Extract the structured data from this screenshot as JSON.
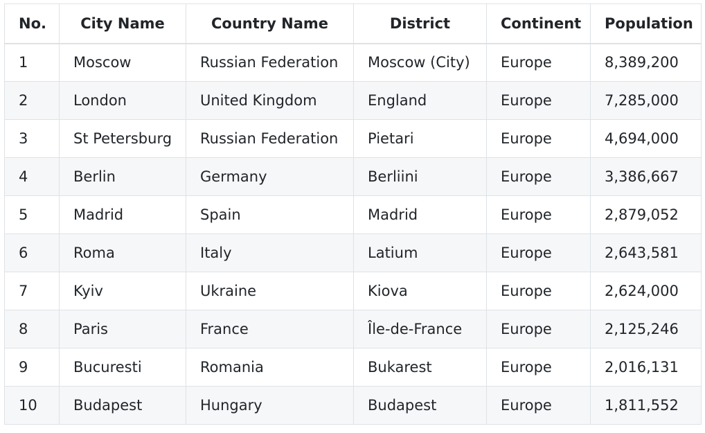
{
  "table": {
    "headers": [
      "No.",
      "City Name",
      "Country Name",
      "District",
      "Continent",
      "Population"
    ],
    "rows": [
      [
        "1",
        "Moscow",
        "Russian Federation",
        "Moscow (City)",
        "Europe",
        "8,389,200"
      ],
      [
        "2",
        "London",
        "United Kingdom",
        "England",
        "Europe",
        "7,285,000"
      ],
      [
        "3",
        "St Petersburg",
        "Russian Federation",
        "Pietari",
        "Europe",
        "4,694,000"
      ],
      [
        "4",
        "Berlin",
        "Germany",
        "Berliini",
        "Europe",
        "3,386,667"
      ],
      [
        "5",
        "Madrid",
        "Spain",
        "Madrid",
        "Europe",
        "2,879,052"
      ],
      [
        "6",
        "Roma",
        "Italy",
        "Latium",
        "Europe",
        "2,643,581"
      ],
      [
        "7",
        "Kyiv",
        "Ukraine",
        "Kiova",
        "Europe",
        "2,624,000"
      ],
      [
        "8",
        "Paris",
        "France",
        "Île-de-France",
        "Europe",
        "2,125,246"
      ],
      [
        "9",
        "Bucuresti",
        "Romania",
        "Bukarest",
        "Europe",
        "2,016,131"
      ],
      [
        "10",
        "Budapest",
        "Hungary",
        "Budapest",
        "Europe",
        "1,811,552"
      ]
    ]
  },
  "colors": {
    "border": "#dee2e6",
    "stripe": "#f6f7f9",
    "text": "#212529"
  }
}
